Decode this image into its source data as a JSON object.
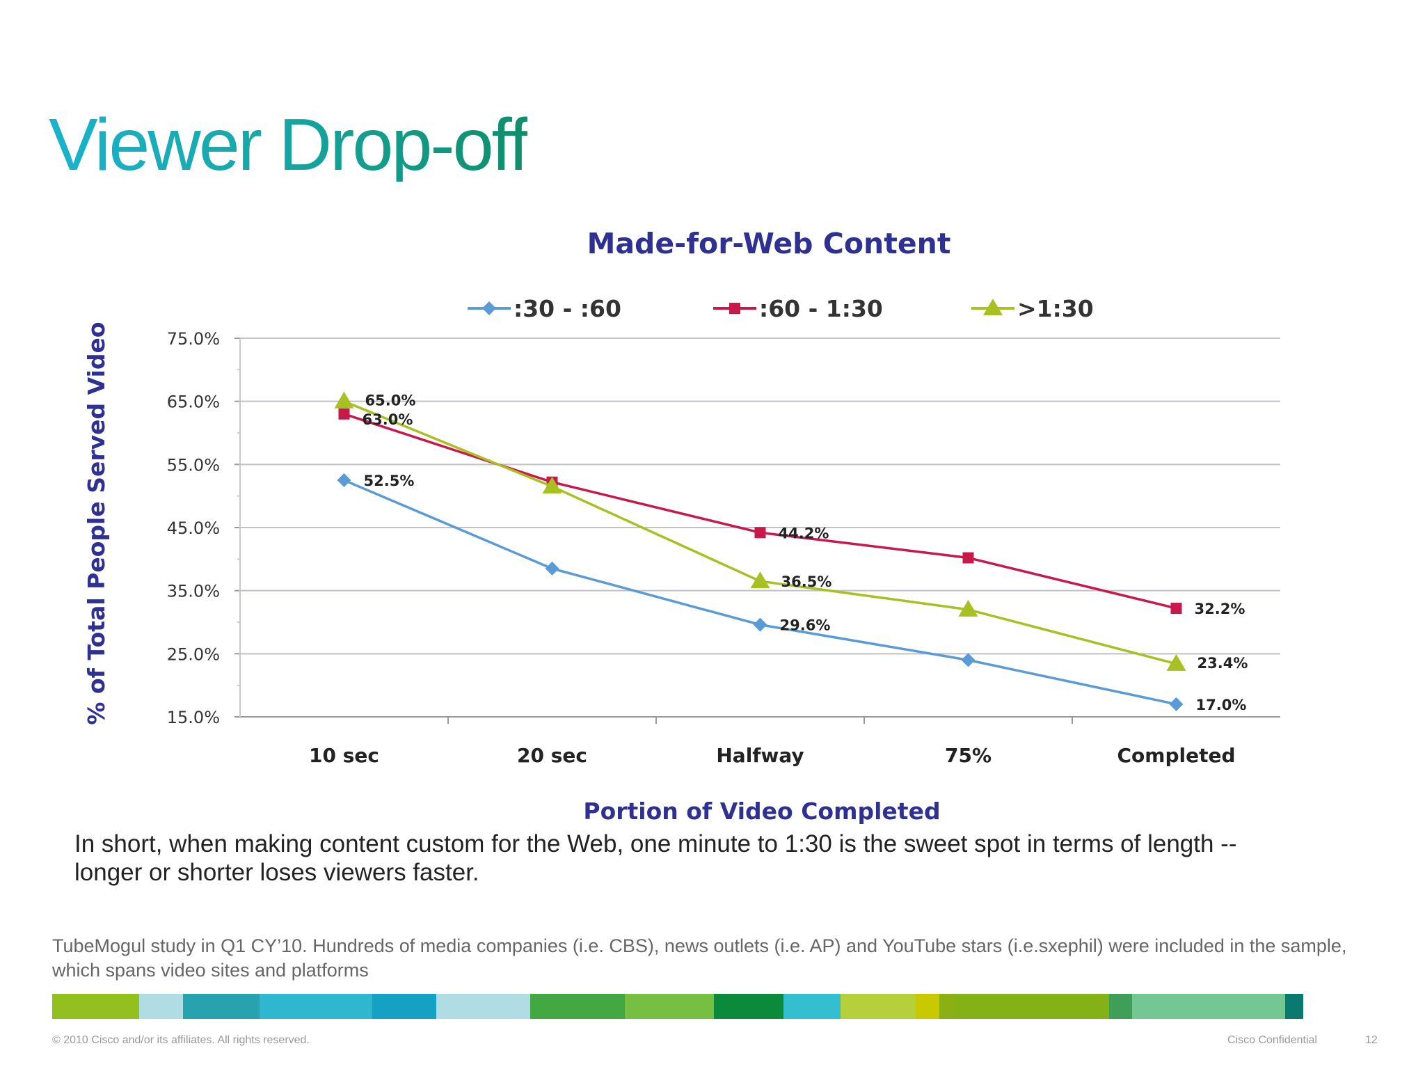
{
  "slide": {
    "title": "Viewer Drop-off",
    "summary": "In short, when making content custom for the Web, one minute to 1:30 is the sweet spot in terms of length -- longer or shorter loses viewers faster.",
    "footnote": "TubeMogul study in Q1 CY’10. Hundreds of media companies (i.e. CBS), news outlets (i.e. AP) and YouTube stars (i.e.sxephil) were included in the sample, which spans video sites and platforms",
    "copyright": "© 2010 Cisco and/or its affiliates. All rights reserved.",
    "confidential": "Cisco Confidential",
    "page_number": "12",
    "band_colors": [
      "#93c01f",
      "#b0dde3",
      "#27a3b0",
      "#2fb7cf",
      "#14a1c4",
      "#b0dde3",
      "#44a842",
      "#76bf43",
      "#0a8a3a",
      "#33bfcf",
      "#b6d03b",
      "#c9c900",
      "#8ab013",
      "#84b116",
      "#3f9e58",
      "#74c692",
      "#0a7970"
    ]
  },
  "chart_data": {
    "type": "line",
    "title": "Made-for-Web Content",
    "xlabel": "Portion of Video Completed",
    "ylabel": "% of Total People Served Video",
    "categories": [
      "10 sec",
      "20 sec",
      "Halfway",
      "75%",
      "Completed"
    ],
    "ylim": [
      15,
      75
    ],
    "yticks": [
      "75.0%",
      "65.0%",
      "55.0%",
      "45.0%",
      "35.0%",
      "25.0%",
      "15.0%"
    ],
    "grid": true,
    "legend_position": "top",
    "series": [
      {
        "name": ":30 - :60",
        "color": "#5b9bd5",
        "marker": "diamond",
        "values": [
          52.5,
          38.5,
          29.6,
          24.0,
          17.0
        ],
        "labels": [
          "52.5%",
          null,
          "29.6%",
          null,
          "17.0%"
        ]
      },
      {
        "name": ":60 - 1:30",
        "color": "#c8194b",
        "marker": "square",
        "values": [
          63.0,
          52.2,
          44.2,
          40.2,
          32.2
        ],
        "labels": [
          "63.0%",
          null,
          "44.2%",
          null,
          "32.2%"
        ]
      },
      {
        "name": ">1:30",
        "color": "#a9c023",
        "marker": "triangle",
        "values": [
          65.0,
          51.5,
          36.5,
          32.0,
          23.4
        ],
        "labels": [
          "65.0%",
          null,
          "36.5%",
          null,
          "23.4%"
        ]
      }
    ]
  }
}
